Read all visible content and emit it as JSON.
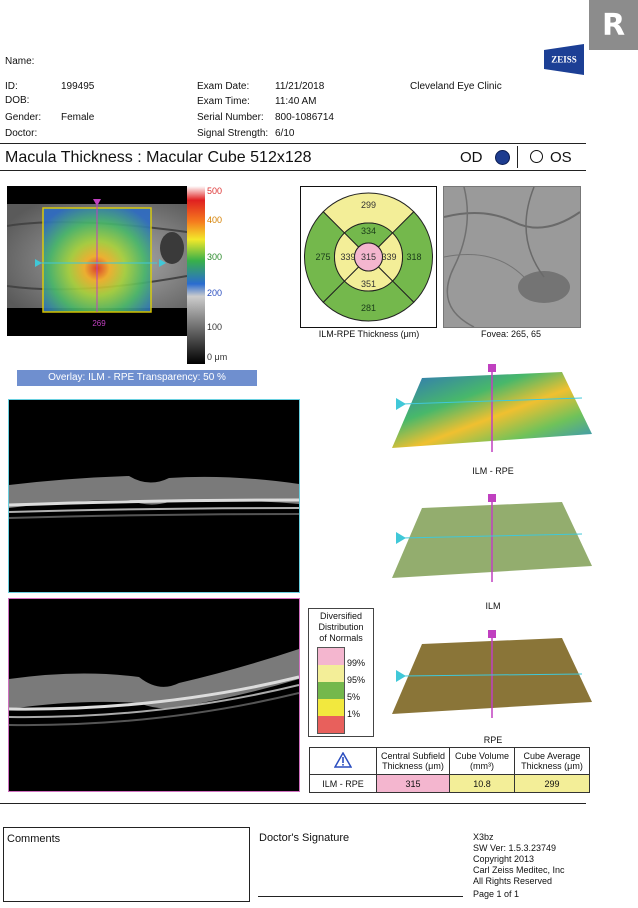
{
  "badge": "R",
  "logo_text": "ZEISS",
  "patient": {
    "name_label": "Name:",
    "id_label": "ID:",
    "id_value": "199495",
    "dob_label": "DOB:",
    "gender_label": "Gender:",
    "gender_value": "Female",
    "doctor_label": "Doctor:"
  },
  "exam": {
    "date_label": "Exam Date:",
    "date_value": "11/21/2018",
    "time_label": "Exam Time:",
    "time_value": "11:40 AM",
    "serial_label": "Serial Number:",
    "serial_value": "800-1086714",
    "signal_label": "Signal Strength:",
    "signal_value": "6/10",
    "clinic": "Cleveland Eye Clinic"
  },
  "report_title": "Macula Thickness : Macular Cube 512x128",
  "eye": {
    "od": "OD",
    "os": "OS"
  },
  "colorbar": {
    "ticks": [
      "500",
      "400",
      "300",
      "200",
      "100",
      "0 μm"
    ]
  },
  "fundus_marker": "269",
  "overlay_caption": "Overlay: ILM - RPE  Transparency: 50 %",
  "etdrs": {
    "caption": "ILM-RPE Thickness (μm)",
    "center": "315",
    "inner_superior": "334",
    "inner_nasal": "339",
    "inner_inferior": "351",
    "inner_temporal": "339",
    "outer_superior": "299",
    "outer_nasal": "318",
    "outer_inferior": "281",
    "outer_temporal": "275",
    "colors": {
      "pink": "#f4b6cf",
      "yellow": "#f3ee98",
      "green": "#74b84c"
    }
  },
  "fovea_caption": "Fovea: 265, 65",
  "surfaces": [
    {
      "label": "ILM - RPE"
    },
    {
      "label": "ILM"
    },
    {
      "label": "RPE"
    }
  ],
  "distribution": {
    "title_lines": [
      "Diversified",
      "Distribution",
      "of Normals"
    ],
    "levels": [
      "99%",
      "95%",
      "5%",
      "1%"
    ],
    "colors": [
      "#f4b6cf",
      "#f3ee98",
      "#74b84c",
      "#f2e83e",
      "#e8605c"
    ]
  },
  "results": {
    "headers": [
      "Central Subfield Thickness (μm)",
      "Cube Volume (mm³)",
      "Cube Average Thickness (μm)"
    ],
    "row_label": "ILM - RPE",
    "values": [
      "315",
      "10.8",
      "299"
    ],
    "cell_colors": [
      "#f4b6cf",
      "#f3ee98",
      "#f3ee98"
    ]
  },
  "footer": {
    "comments_label": "Comments",
    "signature_label": "Doctor's Signature",
    "software": [
      "X3bz",
      "SW Ver: 1.5.3.23749",
      "Copyright 2013",
      "Carl Zeiss Meditec, Inc",
      "All Rights Reserved"
    ],
    "page": "Page 1 of 1"
  }
}
